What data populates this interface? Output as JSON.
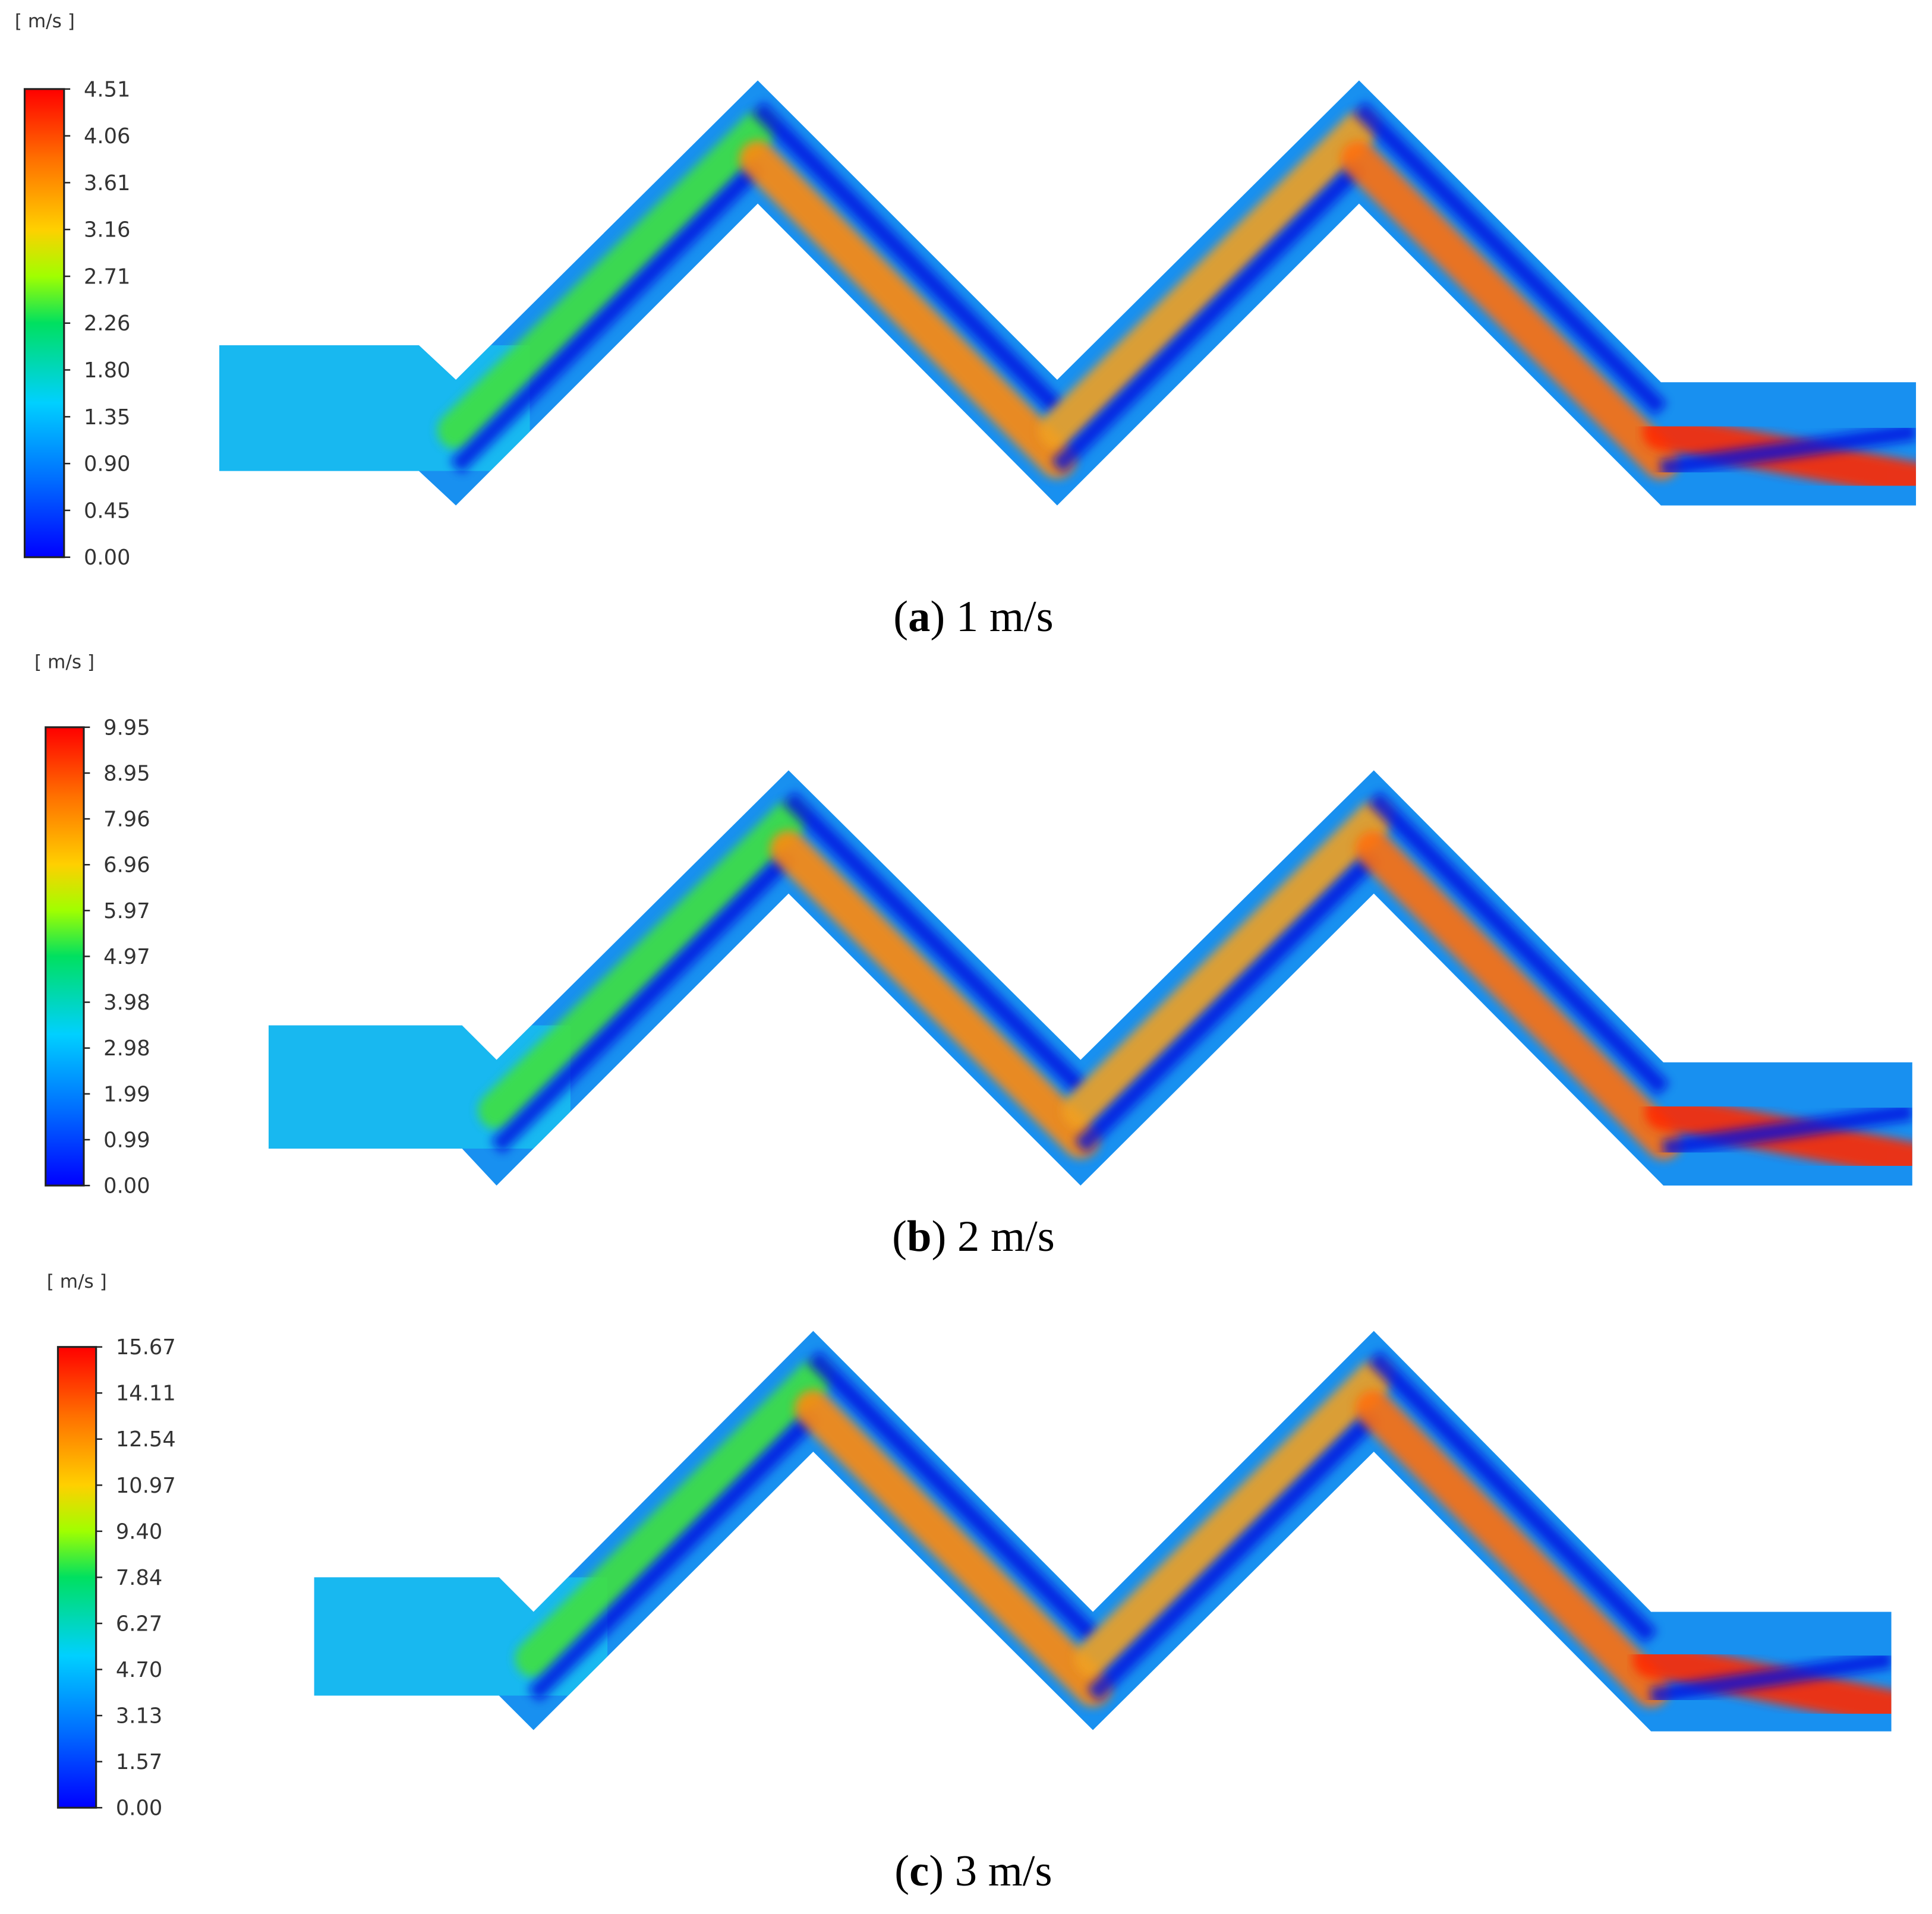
{
  "panels": [
    {
      "unit": "[ m/s ]",
      "ticks": [
        "4.51",
        "4.06",
        "3.61",
        "3.16",
        "2.71",
        "2.26",
        "1.80",
        "1.35",
        "0.90",
        "0.45",
        "0.00"
      ],
      "caption": {
        "open": "(",
        "letter": "a",
        "rest": ") 1 m/s"
      }
    },
    {
      "unit": "[ m/s ]",
      "ticks": [
        "9.95",
        "8.95",
        "7.96",
        "6.96",
        "5.97",
        "4.97",
        "3.98",
        "2.98",
        "1.99",
        "0.99",
        "0.00"
      ],
      "caption": {
        "open": "(",
        "letter": "b",
        "rest": ") 2 m/s"
      }
    },
    {
      "unit": "[ m/s ]",
      "ticks": [
        "15.67",
        "14.11",
        "12.54",
        "10.97",
        "9.40",
        "7.84",
        "6.27",
        "4.70",
        "3.13",
        "1.57",
        "0.00"
      ],
      "caption": {
        "open": "(",
        "letter": "c",
        "rest": ") 3 m/s"
      }
    }
  ]
}
